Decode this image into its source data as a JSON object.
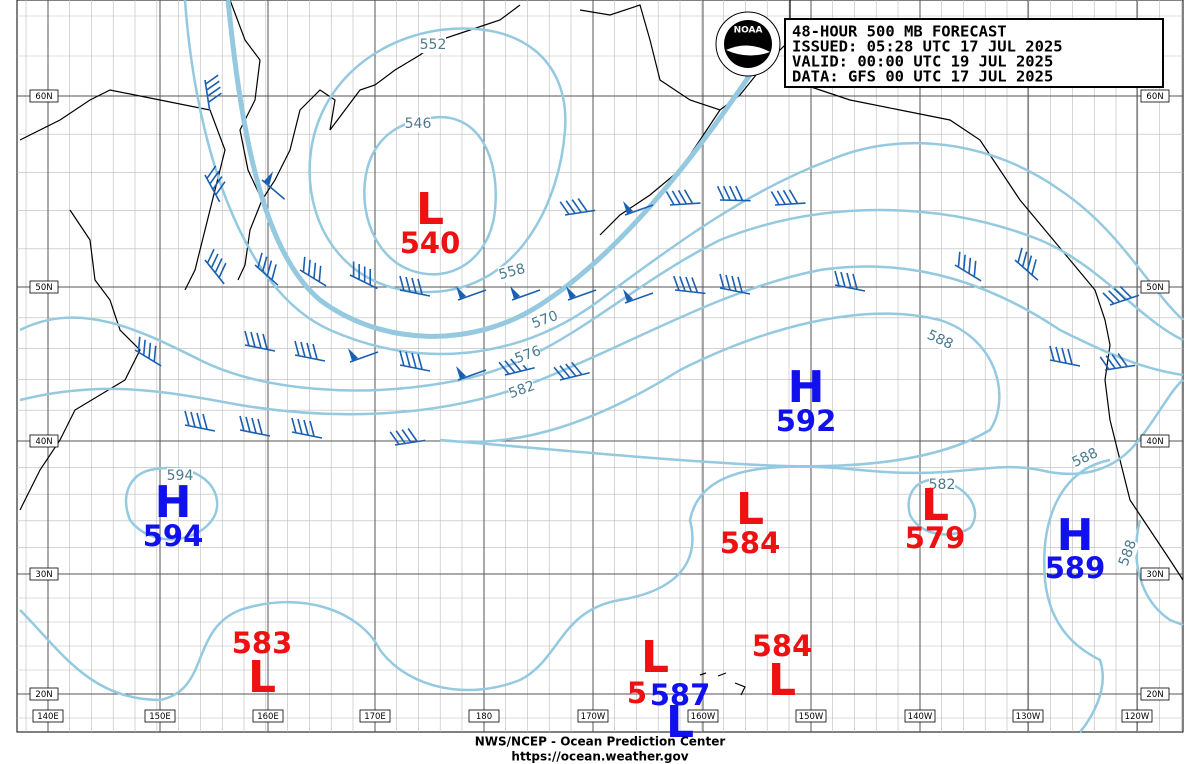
{
  "header": {
    "lines": [
      "48-HOUR 500 MB FORECAST",
      "ISSUED: 05:28 UTC 17 JUL 2025",
      "VALID:  00:00 UTC 19 JUL 2025",
      "DATA:   GFS 00 UTC 17 JUL 2025"
    ]
  },
  "logo": "NOAA",
  "centers": [
    {
      "symbol": "L",
      "value": 540,
      "color": "#ee1111"
    },
    {
      "symbol": "H",
      "value": 594,
      "color": "#1111ee"
    },
    {
      "symbol": "H",
      "value": 592,
      "color": "#1111ee"
    },
    {
      "symbol": "L",
      "value": 584,
      "color": "#ee1111"
    },
    {
      "symbol": "L",
      "value": 579,
      "color": "#ee1111"
    },
    {
      "symbol": "H",
      "value": 589,
      "color": "#1111ee"
    },
    {
      "symbol": "L",
      "value": 583,
      "color": "#ee1111"
    },
    {
      "symbol": "L",
      "value": 584,
      "color": "#ee1111"
    },
    {
      "symbol": "L",
      "value": 5,
      "color": "#ee1111"
    },
    {
      "symbol": "L",
      "value": 587,
      "color": "#1111ee"
    }
  ],
  "contour_labels": [
    552,
    546,
    558,
    570,
    576,
    582,
    588,
    594,
    582,
    588,
    588
  ],
  "latitude_labels": [
    "60N",
    "50N",
    "40N",
    "30N",
    "20N"
  ],
  "longitude_labels": [
    "140E",
    "150E",
    "160E",
    "170E",
    "180",
    "170W",
    "160W",
    "150W",
    "140W",
    "130W",
    "120W"
  ],
  "footer": {
    "lines": [
      "NWS/NCEP - Ocean Prediction Center",
      "https://ocean.weather.gov"
    ]
  }
}
